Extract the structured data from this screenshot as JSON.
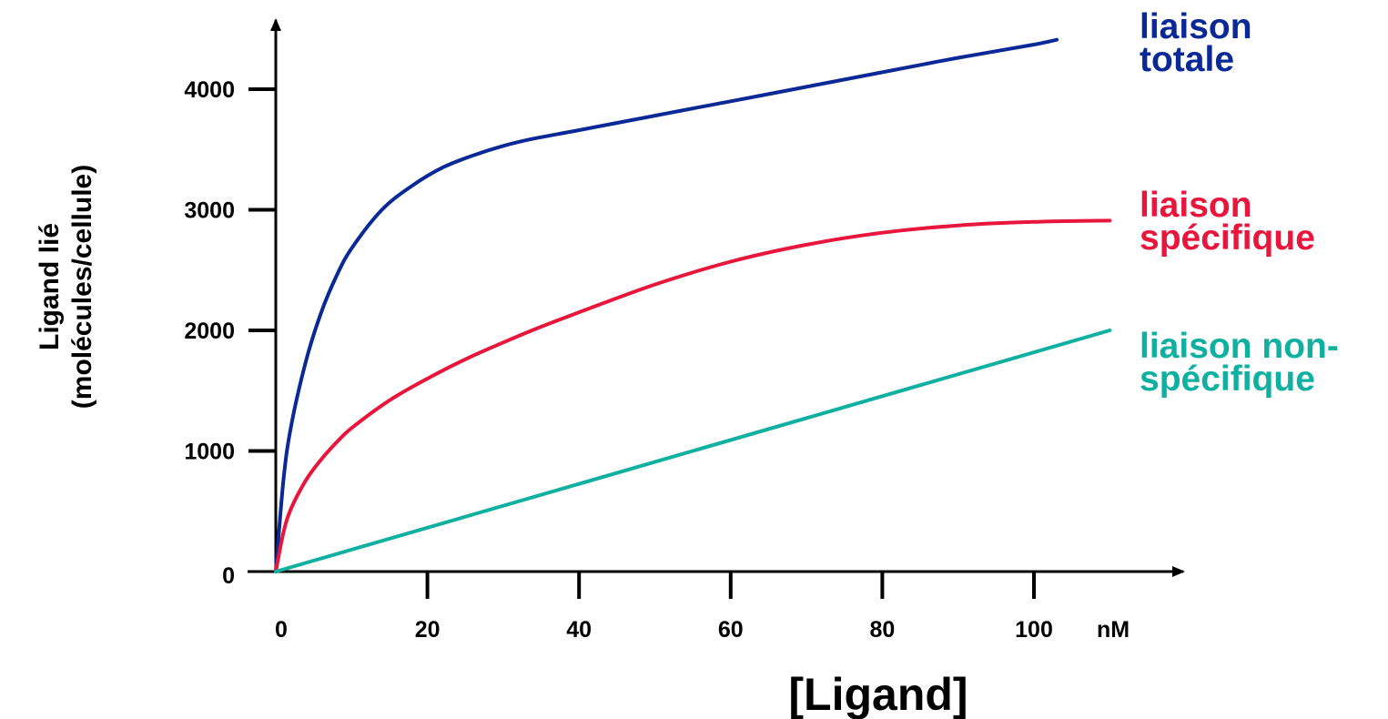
{
  "chart_data": {
    "type": "line",
    "title": "",
    "xlabel": "[Ligand]",
    "x_unit": "nM",
    "ylabel_lines": [
      "Ligand lié",
      "(molécules/cellule)"
    ],
    "xlim": [
      0,
      110
    ],
    "ylim": [
      0,
      4500
    ],
    "x_ticks": [
      0,
      20,
      40,
      60,
      80,
      100
    ],
    "y_ticks": [
      0,
      1000,
      2000,
      3000,
      4000
    ],
    "grid": false,
    "legend": "labels at right end of each line",
    "series": [
      {
        "name_lines": [
          "liaison",
          "totale"
        ],
        "color": "#0a2896",
        "x": [
          0,
          1,
          2,
          4,
          6,
          8,
          10,
          14,
          18,
          22,
          26,
          30,
          34,
          40,
          50,
          60,
          70,
          80,
          90,
          100,
          103
        ],
        "y": [
          0,
          750,
          1200,
          1750,
          2150,
          2450,
          2680,
          3000,
          3200,
          3350,
          3450,
          3530,
          3590,
          3660,
          3780,
          3900,
          4020,
          4140,
          4260,
          4370,
          4410
        ]
      },
      {
        "name_lines": [
          "liaison",
          "spécifique"
        ],
        "color": "#e8163c",
        "x": [
          0,
          1,
          2,
          4,
          6,
          8,
          10,
          15,
          20,
          25,
          30,
          35,
          40,
          50,
          60,
          70,
          80,
          90,
          100,
          110
        ],
        "y": [
          0,
          320,
          520,
          760,
          930,
          1070,
          1190,
          1420,
          1600,
          1760,
          1900,
          2030,
          2150,
          2380,
          2570,
          2710,
          2810,
          2870,
          2900,
          2910
        ]
      },
      {
        "name_lines": [
          "liaison non-",
          "spécifique"
        ],
        "color": "#0fb0a0",
        "x": [
          0,
          110
        ],
        "y": [
          0,
          2000
        ]
      }
    ]
  }
}
